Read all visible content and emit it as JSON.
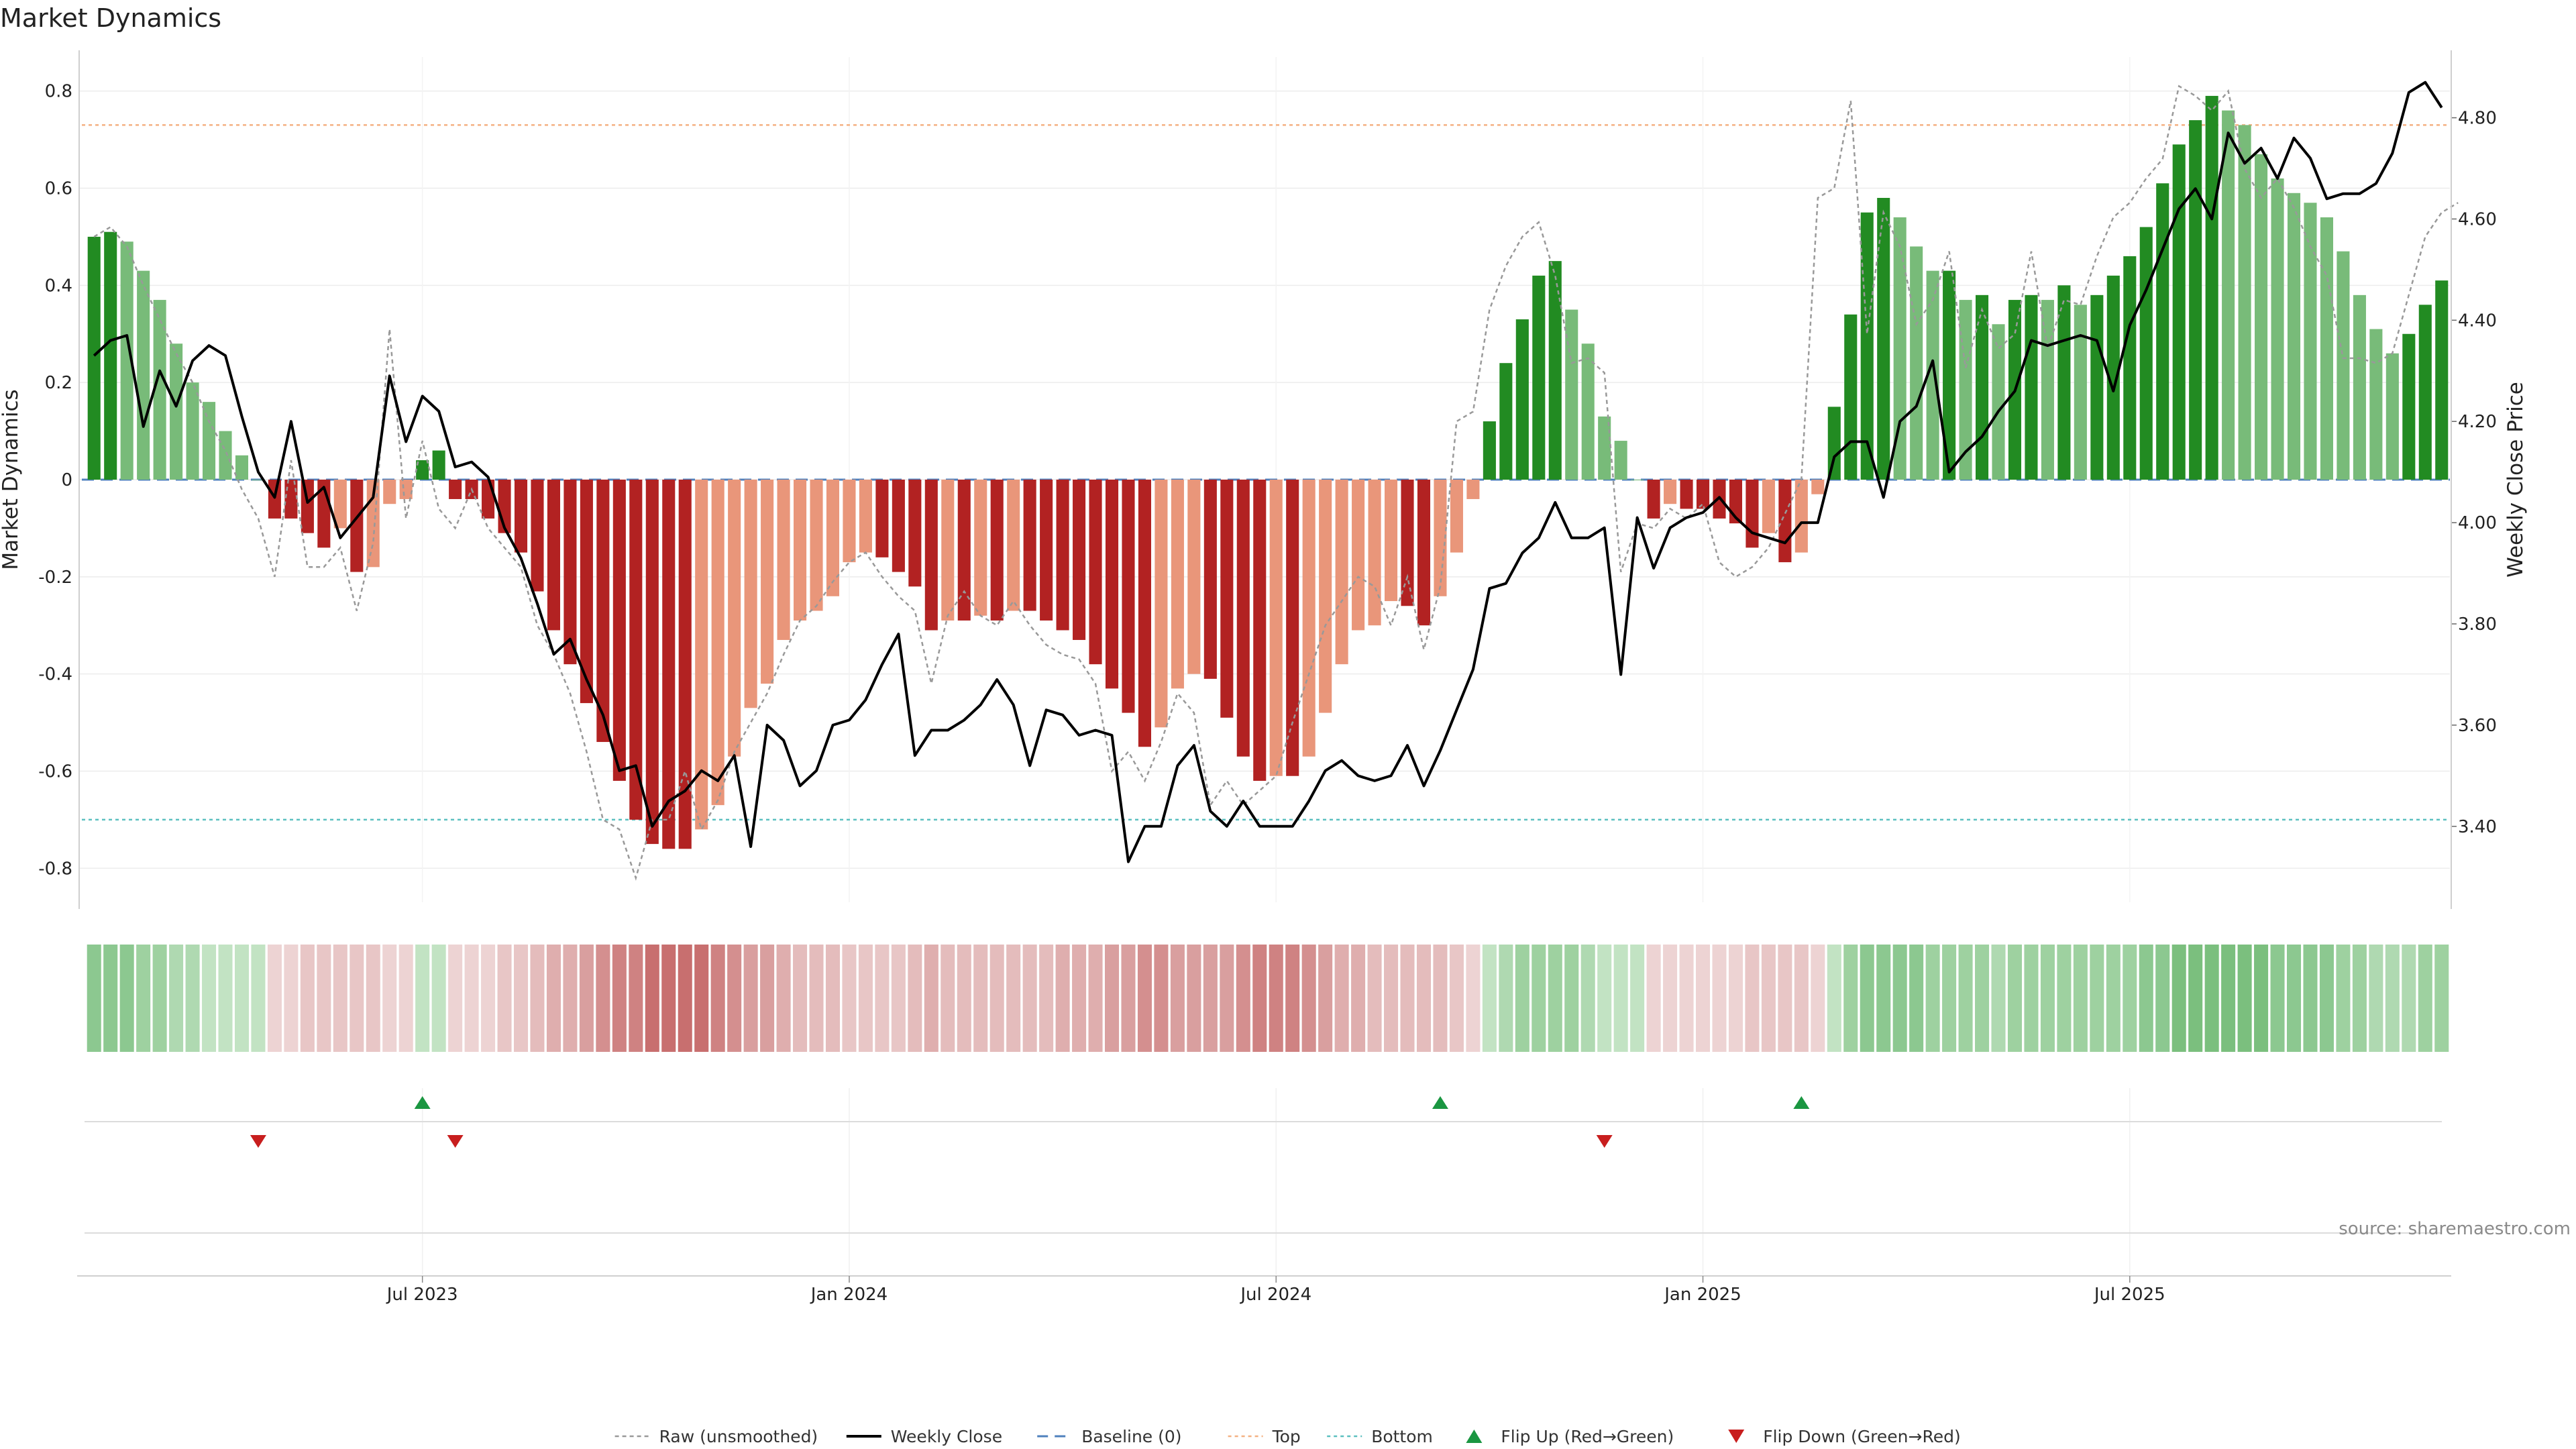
{
  "chart_data": {
    "type": "bar",
    "title": "Market Dynamics",
    "ylabel_left": "Market Dynamics",
    "ylabel_right": "Weekly Close Price",
    "ylim_left": [
      -0.87,
      0.87
    ],
    "ylim_right": [
      3.25,
      4.92
    ],
    "left_ticks": [
      "0.8",
      "0.6",
      "0.4",
      "0.2",
      "0",
      "-0.2",
      "-0.4",
      "-0.6",
      "-0.8"
    ],
    "left_tick_values": [
      0.8,
      0.6,
      0.4,
      0.2,
      0,
      -0.2,
      -0.4,
      -0.6,
      -0.8
    ],
    "right_ticks": [
      "4.80",
      "4.60",
      "4.40",
      "4.20",
      "4.00",
      "3.80",
      "3.60",
      "3.40"
    ],
    "right_tick_values": [
      4.8,
      4.6,
      4.4,
      4.2,
      4.0,
      3.8,
      3.6,
      3.4
    ],
    "x_ticks": [
      "Jul 2023",
      "Jan 2024",
      "Jul 2024",
      "Jan 2025",
      "Jul 2025"
    ],
    "x_tick_weeks": [
      20,
      46,
      72,
      98,
      124
    ],
    "top_level": 0.73,
    "bottom_level": -0.7,
    "values": [
      0.5,
      0.51,
      0.49,
      0.43,
      0.37,
      0.28,
      0.2,
      0.16,
      0.1,
      0.05,
      0.0,
      -0.08,
      -0.08,
      -0.11,
      -0.14,
      -0.1,
      -0.19,
      -0.18,
      -0.05,
      -0.04,
      0.04,
      0.06,
      -0.04,
      -0.04,
      -0.08,
      -0.11,
      -0.15,
      -0.23,
      -0.31,
      -0.38,
      -0.46,
      -0.54,
      -0.62,
      -0.7,
      -0.75,
      -0.76,
      -0.76,
      -0.72,
      -0.67,
      -0.57,
      -0.47,
      -0.42,
      -0.33,
      -0.29,
      -0.27,
      -0.24,
      -0.17,
      -0.15,
      -0.16,
      -0.19,
      -0.22,
      -0.31,
      -0.29,
      -0.29,
      -0.28,
      -0.29,
      -0.27,
      -0.27,
      -0.29,
      -0.31,
      -0.33,
      -0.38,
      -0.43,
      -0.48,
      -0.55,
      -0.51,
      -0.43,
      -0.4,
      -0.41,
      -0.49,
      -0.57,
      -0.62,
      -0.61,
      -0.61,
      -0.57,
      -0.48,
      -0.38,
      -0.31,
      -0.3,
      -0.25,
      -0.26,
      -0.3,
      -0.24,
      -0.15,
      -0.04,
      0.12,
      0.24,
      0.33,
      0.42,
      0.45,
      0.35,
      0.28,
      0.13,
      0.08,
      0.0,
      -0.08,
      -0.05,
      -0.06,
      -0.06,
      -0.08,
      -0.09,
      -0.14,
      -0.11,
      -0.17,
      -0.15,
      -0.03,
      0.15,
      0.34,
      0.55,
      0.58,
      0.54,
      0.48,
      0.43,
      0.43,
      0.37,
      0.38,
      0.32,
      0.37,
      0.38,
      0.37,
      0.4,
      0.36,
      0.38,
      0.42,
      0.46,
      0.52,
      0.61,
      0.69,
      0.74,
      0.79,
      0.76,
      0.73,
      0.67,
      0.62,
      0.59,
      0.57,
      0.54,
      0.47,
      0.38,
      0.31,
      0.26,
      0.3,
      0.36,
      0.41
    ],
    "raw": [
      0.5,
      0.52,
      0.48,
      0.4,
      0.33,
      0.26,
      0.2,
      0.12,
      0.06,
      -0.02,
      -0.08,
      -0.2,
      0.04,
      -0.18,
      -0.18,
      -0.14,
      -0.27,
      -0.13,
      0.31,
      -0.08,
      0.08,
      -0.06,
      -0.1,
      -0.02,
      -0.1,
      -0.14,
      -0.18,
      -0.3,
      -0.36,
      -0.44,
      -0.56,
      -0.7,
      -0.72,
      -0.82,
      -0.7,
      -0.7,
      -0.6,
      -0.72,
      -0.66,
      -0.56,
      -0.5,
      -0.44,
      -0.36,
      -0.29,
      -0.26,
      -0.21,
      -0.17,
      -0.15,
      -0.2,
      -0.24,
      -0.27,
      -0.42,
      -0.28,
      -0.23,
      -0.28,
      -0.3,
      -0.25,
      -0.3,
      -0.34,
      -0.36,
      -0.37,
      -0.42,
      -0.6,
      -0.56,
      -0.62,
      -0.54,
      -0.44,
      -0.48,
      -0.67,
      -0.62,
      -0.67,
      -0.64,
      -0.61,
      -0.5,
      -0.4,
      -0.3,
      -0.25,
      -0.2,
      -0.22,
      -0.3,
      -0.2,
      -0.35,
      -0.22,
      0.12,
      0.14,
      0.35,
      0.44,
      0.5,
      0.53,
      0.42,
      0.24,
      0.25,
      0.22,
      -0.19,
      -0.09,
      -0.1,
      -0.06,
      -0.08,
      -0.05,
      -0.17,
      -0.2,
      -0.18,
      -0.14,
      -0.07,
      0.0,
      0.58,
      0.6,
      0.78,
      0.3,
      0.55,
      0.48,
      0.32,
      0.37,
      0.47,
      0.23,
      0.35,
      0.27,
      0.3,
      0.47,
      0.27,
      0.37,
      0.36,
      0.46,
      0.54,
      0.57,
      0.62,
      0.66,
      0.81,
      0.79,
      0.76,
      0.8,
      0.64,
      0.58,
      0.62,
      0.56,
      0.48,
      0.42,
      0.25,
      0.25,
      0.24,
      0.26,
      0.38,
      0.5,
      0.55,
      0.57
    ],
    "weekly_close": [
      4.33,
      4.36,
      4.37,
      4.19,
      4.3,
      4.23,
      4.32,
      4.35,
      4.33,
      4.21,
      4.1,
      4.05,
      4.2,
      4.04,
      4.07,
      3.97,
      4.01,
      4.05,
      4.29,
      4.16,
      4.25,
      4.22,
      4.11,
      4.12,
      4.09,
      3.99,
      3.93,
      3.84,
      3.74,
      3.77,
      3.69,
      3.62,
      3.51,
      3.52,
      3.4,
      3.45,
      3.47,
      3.51,
      3.49,
      3.54,
      3.36,
      3.6,
      3.57,
      3.48,
      3.51,
      3.6,
      3.61,
      3.65,
      3.72,
      3.78,
      3.54,
      3.59,
      3.59,
      3.61,
      3.64,
      3.69,
      3.64,
      3.52,
      3.63,
      3.62,
      3.58,
      3.59,
      3.58,
      3.33,
      3.4,
      3.4,
      3.52,
      3.56,
      3.43,
      3.4,
      3.45,
      3.4,
      3.4,
      3.4,
      3.45,
      3.51,
      3.53,
      3.5,
      3.49,
      3.5,
      3.56,
      3.48,
      3.55,
      3.63,
      3.71,
      3.87,
      3.88,
      3.94,
      3.97,
      4.04,
      3.97,
      3.97,
      3.99,
      3.7,
      4.01,
      3.91,
      3.99,
      4.01,
      4.02,
      4.05,
      4.01,
      3.98,
      3.97,
      3.96,
      4.0,
      4.0,
      4.13,
      4.16,
      4.16,
      4.05,
      4.2,
      4.23,
      4.32,
      4.1,
      4.14,
      4.17,
      4.22,
      4.26,
      4.36,
      4.35,
      4.36,
      4.37,
      4.36,
      4.26,
      4.39,
      4.46,
      4.54,
      4.62,
      4.66,
      4.6,
      4.77,
      4.71,
      4.74,
      4.68,
      4.76,
      4.72,
      4.64,
      4.65,
      4.65,
      4.67,
      4.73,
      4.85,
      4.87,
      4.82
    ],
    "strength_colors": [
      "#7bbf7e",
      "#8cc890",
      "#9ed1a0",
      "#afd9b1",
      "#c2e3c3",
      "#edd3d3",
      "#e8c6c6",
      "#e4bcbc",
      "#dfaeae",
      "#d99f9f",
      "#d48f8f",
      "#cf8282",
      "#c86f6f"
    ],
    "colors": {
      "strong_up": "#228b22",
      "weak_up": "#78bb79",
      "strong_down": "#b22222",
      "weak_down": "#e9967a",
      "raw": "#999999",
      "close": "#000000",
      "baseline": "#4f81bd",
      "top": "#f4b183",
      "bottom": "#5bc0c0",
      "flip_up": "#1a9641",
      "flip_down": "#c81e1e"
    },
    "flip_up_weeks": [
      20,
      82,
      104
    ],
    "flip_down_weeks": [
      10,
      22,
      92
    ],
    "legend": [
      {
        "label": "Raw (unsmoothed)",
        "kind": "raw"
      },
      {
        "label": "Weekly Close",
        "kind": "close"
      },
      {
        "label": "Baseline (0)",
        "kind": "baseline"
      },
      {
        "label": "Top",
        "kind": "top"
      },
      {
        "label": "Bottom",
        "kind": "bottom"
      },
      {
        "label": "Flip Up (Red→Green)",
        "kind": "flip_up"
      },
      {
        "label": "Flip Down (Green→Red)",
        "kind": "flip_down"
      }
    ],
    "source": "source: sharemaestro.com"
  }
}
